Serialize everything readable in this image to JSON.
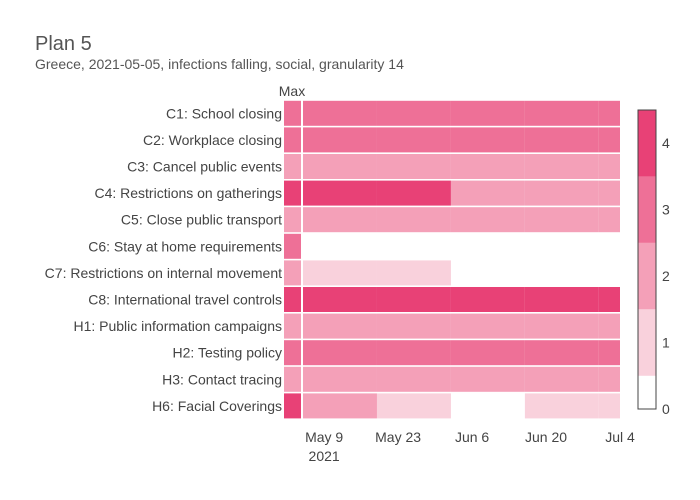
{
  "chart_data": {
    "type": "heatmap",
    "title": "Plan 5",
    "subtitle": "Greece, 2021-05-05, infections falling, social, granularity 14",
    "max_column_label": "Max",
    "rows": [
      "C1: School closing",
      "C2: Workplace closing",
      "C3: Cancel public events",
      "C4: Restrictions on gatherings",
      "C5: Close public transport",
      "C6: Stay at home requirements",
      "C7: Restrictions on internal movement",
      "C8: International travel controls",
      "H1: Public information campaigns",
      "H2: Testing policy",
      "H3: Contact tracing",
      "H6: Facial Coverings"
    ],
    "max_values": [
      3,
      3,
      2,
      4,
      2,
      3,
      2,
      4,
      2,
      3,
      2,
      4
    ],
    "period_starts": [
      "2021-05-05",
      "2021-05-19",
      "2021-06-02",
      "2021-06-16",
      "2021-06-30"
    ],
    "period_end": "2021-07-04",
    "values": [
      [
        3,
        3,
        3,
        3,
        3
      ],
      [
        3,
        3,
        3,
        3,
        3
      ],
      [
        2,
        2,
        2,
        2,
        2
      ],
      [
        4,
        4,
        2,
        2,
        2
      ],
      [
        2,
        2,
        2,
        2,
        2
      ],
      [
        null,
        null,
        null,
        null,
        null
      ],
      [
        1,
        1,
        null,
        null,
        null
      ],
      [
        4,
        4,
        4,
        4,
        4
      ],
      [
        2,
        2,
        2,
        2,
        2
      ],
      [
        3,
        3,
        3,
        3,
        3
      ],
      [
        2,
        2,
        2,
        2,
        2
      ],
      [
        2,
        1,
        null,
        1,
        1
      ]
    ],
    "x_ticks": [
      {
        "date": "2021-05-09",
        "label": "May 9",
        "sublabel": "2021"
      },
      {
        "date": "2021-05-23",
        "label": "May 23",
        "sublabel": ""
      },
      {
        "date": "2021-06-06",
        "label": "Jun 6",
        "sublabel": ""
      },
      {
        "date": "2021-06-20",
        "label": "Jun 20",
        "sublabel": ""
      },
      {
        "date": "2021-07-04",
        "label": "Jul 4",
        "sublabel": ""
      }
    ],
    "colorscale": {
      "min": 0,
      "max": 4.5,
      "ticks": [
        0,
        1,
        2,
        3,
        4
      ],
      "colors": [
        "#ffffff",
        "#f9d1dc",
        "#f4a0b8",
        "#ee7097",
        "#e84176"
      ]
    }
  }
}
